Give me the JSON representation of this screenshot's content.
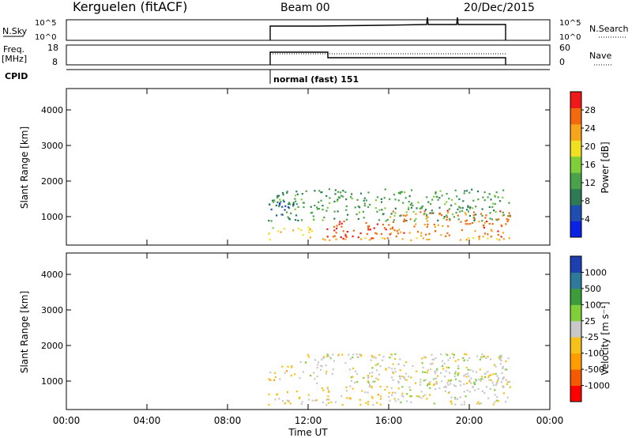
{
  "header": {
    "station": "Kerguelen (fitACF)",
    "beam": "Beam 00",
    "date": "20/Dec/2015"
  },
  "status_panels": {
    "nsky": {
      "label": "N.Sky",
      "ticks_left": [
        "10^5",
        "10^0"
      ],
      "ticks_right": [
        "10^5",
        "10^0"
      ],
      "right_label": "N.Search"
    },
    "freq": {
      "label_line1": "Freq.",
      "label_line2": "[MHz]",
      "ticks_left": [
        "18",
        "8"
      ],
      "ticks_right": [
        "60",
        "0"
      ],
      "right_label": "Nave"
    },
    "cpid": {
      "label": "CPID",
      "mode_text": "normal (fast) 151"
    }
  },
  "colors": {
    "power_scale": [
      "#0a22e6",
      "#1e4fb0",
      "#2e7a55",
      "#4aa34a",
      "#7fcf3a",
      "#f0e020",
      "#f7a51a",
      "#f26a0d",
      "#f01818"
    ],
    "velocity_scale": [
      "#ff0000",
      "#f55a00",
      "#ff9d00",
      "#f6c21a",
      "#c8c8c8",
      "#7fcf3a",
      "#3a9d3a",
      "#2e7a9a",
      "#1e3fb0"
    ]
  },
  "chart_data": [
    {
      "type": "heatmap",
      "name": "power",
      "title": "",
      "xlabel": "Time UT",
      "ylabel": "Slant Range [km]",
      "x_ticks": [
        "00:00",
        "04:00",
        "08:00",
        "12:00",
        "16:00",
        "20:00",
        "00:00"
      ],
      "y_ticks": [
        "1000",
        "2000",
        "3000",
        "4000"
      ],
      "xlim": [
        0,
        24
      ],
      "ylim": [
        200,
        4600
      ],
      "colorbar": {
        "label": "Power [dB]",
        "ticks": [
          "4",
          "8",
          "12",
          "16",
          "20",
          "24",
          "28"
        ],
        "range": [
          0,
          32
        ]
      },
      "data_window_hours": [
        10.0,
        22.0
      ],
      "bands": [
        {
          "t0": 10.0,
          "t1": 22.0,
          "r0": 350,
          "r1": 450,
          "value": 22
        },
        {
          "t0": 10.0,
          "t1": 12.5,
          "r0": 480,
          "r1": 720,
          "value": 20
        },
        {
          "t0": 12.5,
          "t1": 16.0,
          "r0": 400,
          "r1": 900,
          "value": 28
        },
        {
          "t0": 16.0,
          "t1": 22.0,
          "r0": 450,
          "r1": 1200,
          "value": 26
        },
        {
          "t0": 10.0,
          "t1": 22.0,
          "r0": 900,
          "r1": 1800,
          "value": 12
        },
        {
          "t0": 10.0,
          "t1": 11.5,
          "r0": 1050,
          "r1": 1450,
          "value": 6
        }
      ]
    },
    {
      "type": "heatmap",
      "name": "velocity",
      "title": "",
      "xlabel": "Time UT",
      "ylabel": "Slant Range [km]",
      "x_ticks": [
        "00:00",
        "04:00",
        "08:00",
        "12:00",
        "16:00",
        "20:00",
        "00:00"
      ],
      "y_ticks": [
        "1000",
        "2000",
        "3000",
        "4000"
      ],
      "xlim": [
        0,
        24
      ],
      "ylim": [
        200,
        4600
      ],
      "colorbar": {
        "label": "Velocity [m s⁻¹]",
        "ticks": [
          "-1000",
          "-500",
          "-100",
          "-25",
          "25",
          "100",
          "500",
          "1000"
        ],
        "range": [
          -1200,
          1200
        ]
      },
      "data_window_hours": [
        10.0,
        22.0
      ],
      "bands": [
        {
          "t0": 10.0,
          "t1": 12.5,
          "r0": 350,
          "r1": 750,
          "value": -150
        },
        {
          "t0": 12.5,
          "t1": 16.0,
          "r0": 350,
          "r1": 900,
          "value": -200
        },
        {
          "t0": 16.0,
          "t1": 22.0,
          "r0": 350,
          "r1": 1300,
          "value": 0
        },
        {
          "t0": 10.0,
          "t1": 11.5,
          "r0": 1050,
          "r1": 1450,
          "value": -300
        },
        {
          "t0": 11.5,
          "t1": 22.0,
          "r0": 900,
          "r1": 1800,
          "value": -20
        }
      ]
    }
  ]
}
